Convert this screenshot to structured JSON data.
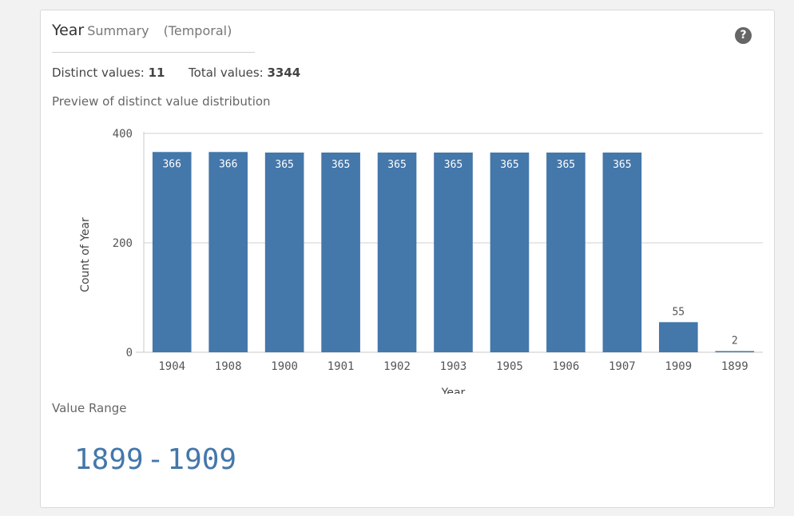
{
  "header": {
    "field_name": "Year",
    "summary_label": "Summary",
    "type_label": "(Temporal)"
  },
  "help": {
    "icon": "help-icon",
    "glyph": "?"
  },
  "stats": {
    "distinct_label": "Distinct values:",
    "distinct_value": "11",
    "total_label": "Total values:",
    "total_value": "3344"
  },
  "preview_label": "Preview of distinct value distribution",
  "chart_data": {
    "type": "bar",
    "categories": [
      "1904",
      "1908",
      "1900",
      "1901",
      "1902",
      "1903",
      "1905",
      "1906",
      "1907",
      "1909",
      "1899"
    ],
    "values": [
      366,
      366,
      365,
      365,
      365,
      365,
      365,
      365,
      365,
      55,
      2
    ],
    "xlabel": "Year",
    "ylabel": "Count of Year",
    "ylim": [
      0,
      400
    ],
    "yticks": [
      0,
      200,
      400
    ],
    "grid": true,
    "bar_color": "#4477aa"
  },
  "value_range": {
    "label": "Value Range",
    "min": "1899",
    "separator": "-",
    "max": "1909"
  }
}
